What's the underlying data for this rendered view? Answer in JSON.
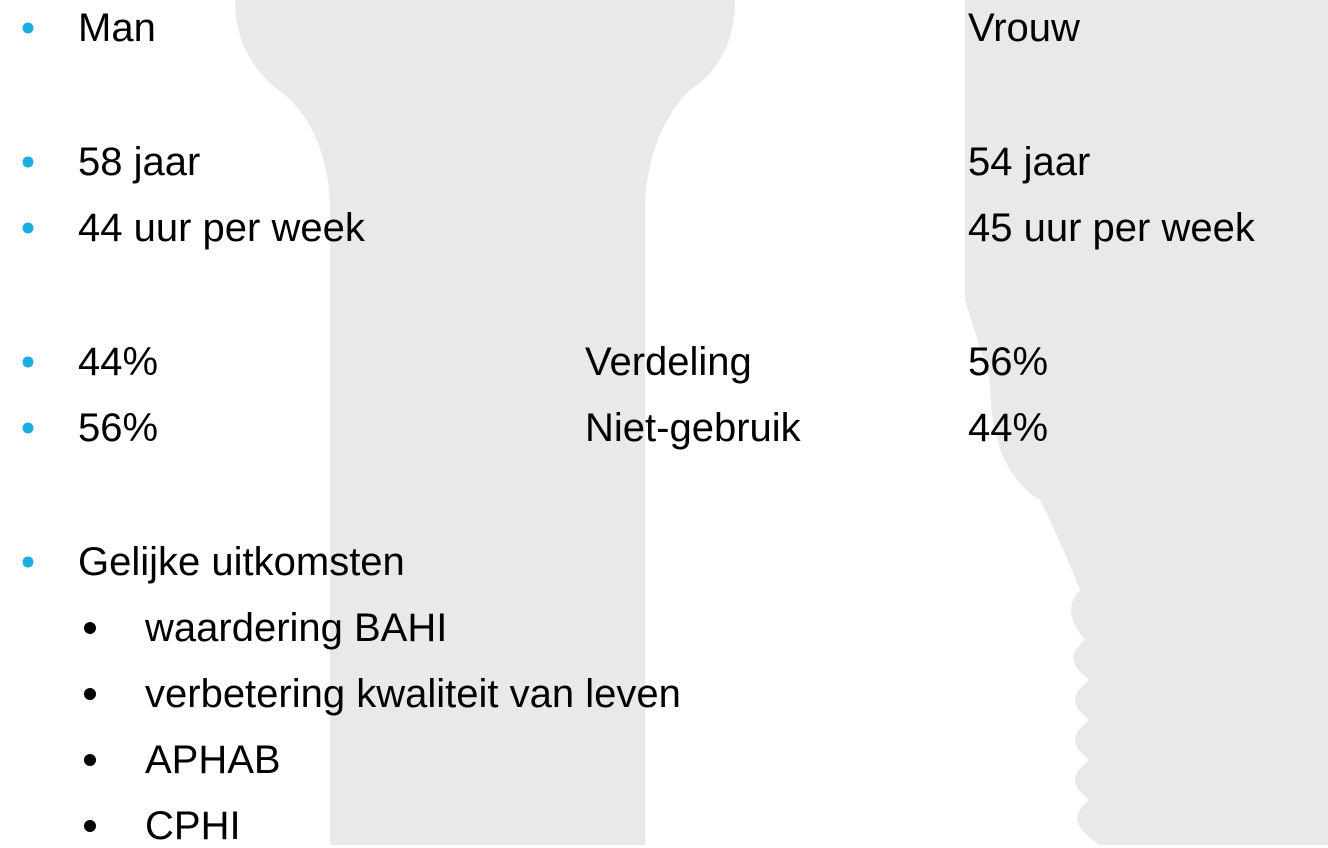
{
  "rows": [
    {
      "left": "Man",
      "right": "Vrouw"
    },
    {
      "left": "58 jaar",
      "right": "54 jaar"
    },
    {
      "left": "44 uur per week",
      "right": "45 uur per week"
    },
    {
      "left": "44%",
      "middle": "Verdeling",
      "right": "56%"
    },
    {
      "left": "56%",
      "middle": "Niet-gebruik",
      "right": "44%"
    }
  ],
  "outcomes": {
    "title": "Gelijke uitkomsten",
    "items": [
      "waardering BAHI",
      "verbetering kwaliteit van leven",
      "APHAB",
      "CPHI"
    ]
  }
}
